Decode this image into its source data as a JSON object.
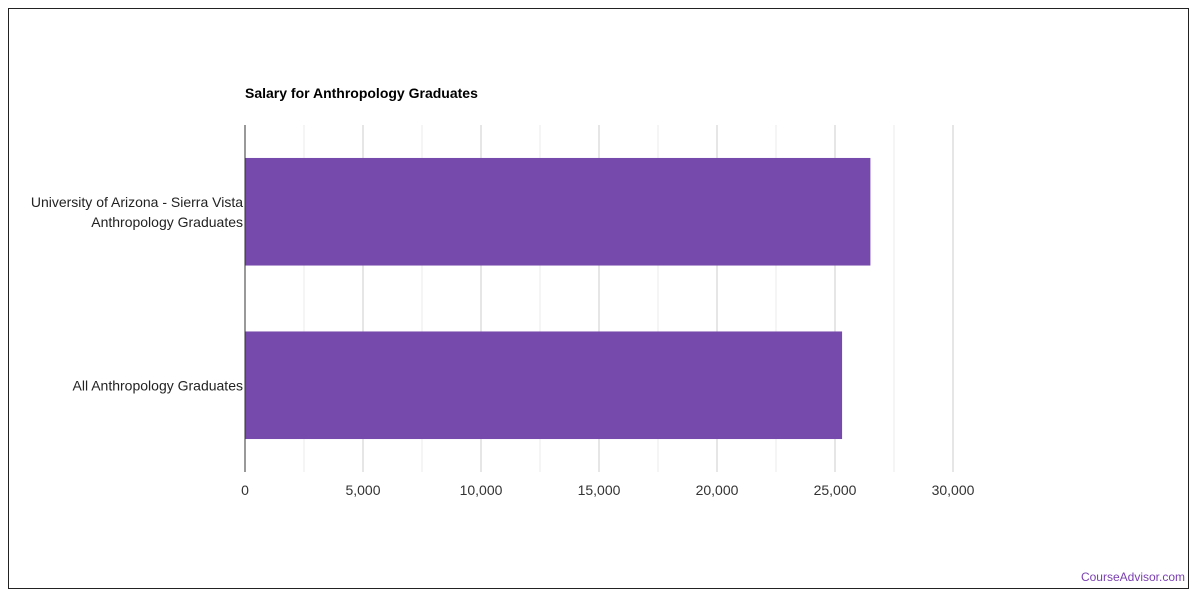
{
  "chart_data": {
    "type": "bar",
    "orientation": "horizontal",
    "title": "Salary for Anthropology Graduates",
    "categories": [
      [
        "University of Arizona - Sierra Vista",
        "Anthropology Graduates"
      ],
      [
        "All Anthropology Graduates"
      ]
    ],
    "values": [
      26500,
      25300
    ],
    "xlim": [
      0,
      30000
    ],
    "x_ticks": [
      0,
      5000,
      10000,
      15000,
      20000,
      25000,
      30000
    ],
    "x_tick_labels": [
      "0",
      "5,000",
      "10,000",
      "15,000",
      "20,000",
      "25,000",
      "30,000"
    ],
    "grid": true,
    "bar_color": "#7649ad"
  },
  "branding": {
    "text": "CourseAdvisor.com",
    "color": "#7a3fb0"
  }
}
